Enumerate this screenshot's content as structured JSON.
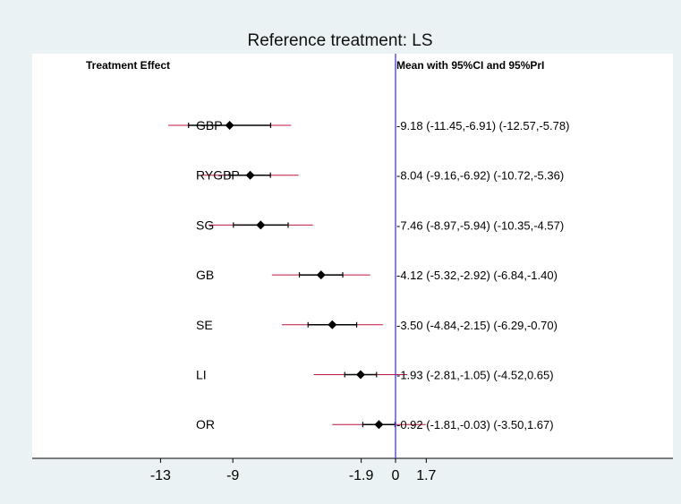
{
  "chart_data": {
    "type": "forest",
    "title": "Reference treatment: LS",
    "left_header": "Treatment Effect",
    "right_header": "Mean with 95%CI and 95%PrI",
    "x_ticks": [
      "-13",
      "-9",
      "-1.9",
      "0",
      "1.7"
    ],
    "xlim": [
      -14.5,
      18.5
    ],
    "reference_line": 0,
    "colors": {
      "ci": "#000000",
      "pri": "#c0143c",
      "reference": "#3a3af0",
      "marker": "#000000"
    },
    "rows": [
      {
        "label": "GBP",
        "mean": -9.18,
        "ci": [
          -11.45,
          -6.91
        ],
        "pri": [
          -12.57,
          -5.78
        ],
        "text": "-9.18 (-11.45,-6.91)  (-12.57,-5.78)"
      },
      {
        "label": "RYGBP",
        "mean": -8.04,
        "ci": [
          -9.16,
          -6.92
        ],
        "pri": [
          -10.72,
          -5.36
        ],
        "text": "-8.04 (-9.16,-6.92)  (-10.72,-5.36)"
      },
      {
        "label": "SG",
        "mean": -7.46,
        "ci": [
          -8.97,
          -5.94
        ],
        "pri": [
          -10.35,
          -4.57
        ],
        "text": "-7.46 (-8.97,-5.94)  (-10.35,-4.57)"
      },
      {
        "label": "GB",
        "mean": -4.12,
        "ci": [
          -5.32,
          -2.92
        ],
        "pri": [
          -6.84,
          -1.4
        ],
        "text": "-4.12 (-5.32,-2.92)  (-6.84,-1.40)"
      },
      {
        "label": "SE",
        "mean": -3.5,
        "ci": [
          -4.84,
          -2.15
        ],
        "pri": [
          -6.29,
          -0.7
        ],
        "text": "-3.50 (-4.84,-2.15)  (-6.29,-0.70)"
      },
      {
        "label": "LI",
        "mean": -1.93,
        "ci": [
          -2.81,
          -1.05
        ],
        "pri": [
          -4.52,
          0.65
        ],
        "text": "-1.93 (-2.81,-1.05)  (-4.52,0.65)"
      },
      {
        "label": "OR",
        "mean": -0.92,
        "ci": [
          -1.81,
          -0.03
        ],
        "pri": [
          -3.5,
          1.67
        ],
        "text": "-0.92 (-1.81,-0.03)  (-3.50,1.67)"
      }
    ]
  }
}
